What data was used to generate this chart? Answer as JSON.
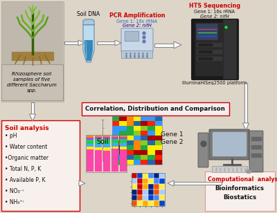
{
  "bg_color": "#ddd5c8",
  "top_row": {
    "plant_label": "Rhizosphere soil\nsamples of five\ndifferent Saccharum\nspp.",
    "soil_dna_label": "Soil DNA",
    "pcr_title": "PCR Amplification",
    "pcr_line1": "Gene 1: 16s rRNA",
    "pcr_line2": "Gene 2: nifH",
    "hts_title": "HTS Sequencing",
    "hts_line1": "Gene 1: 16s rRNA",
    "hts_line2": "Gene 2: nifH",
    "illumina_label": "IlluminaHiSeq2500 platform"
  },
  "middle": {
    "correlation_label": "Correlation, Distribution and Comparison",
    "soil_label": "Soil",
    "gene_label": "Gene 1\nGene 2"
  },
  "bottom_left": {
    "title": "Soil analysis",
    "items": [
      "• pH",
      "• Water content",
      "•Organic matter",
      "• Total N, P, K",
      "• Available P, K",
      "• NO₃⁻ᵎ",
      "• NH₄⁺ᵎ"
    ]
  },
  "bottom_right": {
    "title": "Computational  analysis",
    "line1": "Bioinformatics",
    "line2": "Biostatics"
  },
  "colors": {
    "red": "#cc0000",
    "blue": "#3366cc",
    "dark_blue": "#000099",
    "black": "#111111",
    "gray": "#888888",
    "dark_gray": "#444444"
  }
}
